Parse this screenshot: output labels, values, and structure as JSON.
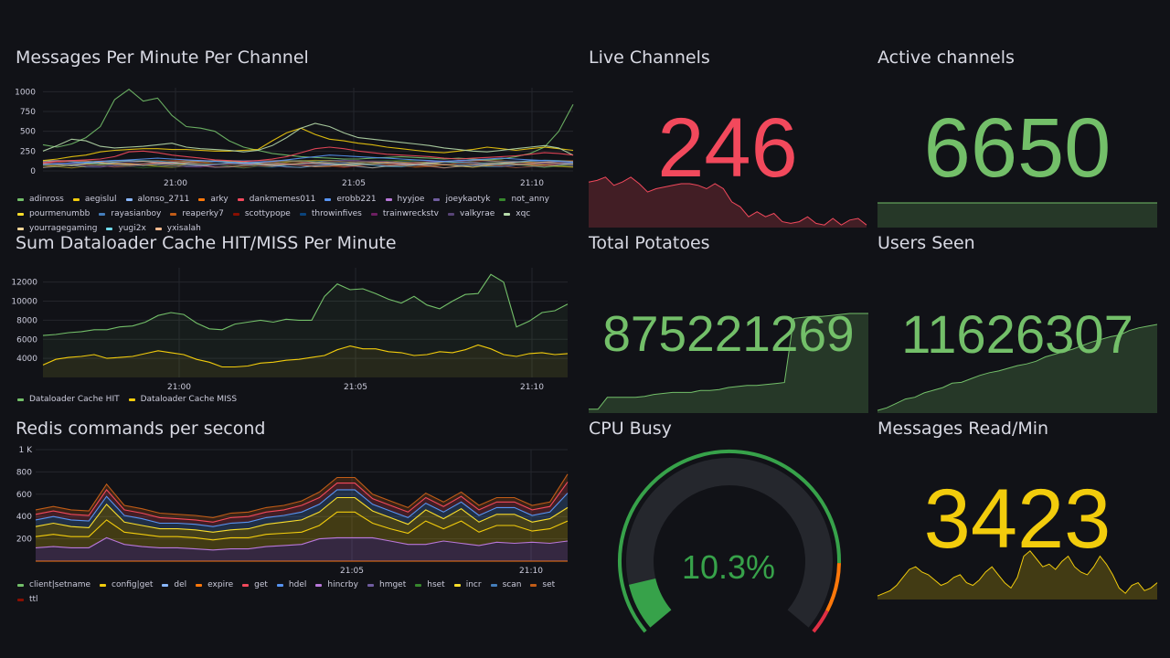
{
  "colors": {
    "red": "#f2495c",
    "green": "#73bf69",
    "yellow": "#f2cc0c",
    "background": "#111217"
  },
  "messages_panel": {
    "title": "Messages Per Minute Per Channel",
    "legend": [
      {
        "label": "adinross",
        "color": "#73bf69"
      },
      {
        "label": "aegislul",
        "color": "#f2cc0c"
      },
      {
        "label": "alonso_2711",
        "color": "#8ab8ff"
      },
      {
        "label": "arky",
        "color": "#ff780a"
      },
      {
        "label": "dankmemes011",
        "color": "#f2495c"
      },
      {
        "label": "erobb221",
        "color": "#5794f2"
      },
      {
        "label": "hyyjoe",
        "color": "#b877d9"
      },
      {
        "label": "joeykaotyk",
        "color": "#705da0"
      },
      {
        "label": "not_anny",
        "color": "#37872d"
      },
      {
        "label": "pourmenumbb",
        "color": "#fade2a"
      },
      {
        "label": "rayasianboy",
        "color": "#447ebc"
      },
      {
        "label": "reaperky7",
        "color": "#c15c17"
      },
      {
        "label": "scottypope",
        "color": "#890f02"
      },
      {
        "label": "throwinfives",
        "color": "#0a437c"
      },
      {
        "label": "trainwreckstv",
        "color": "#6d1f62"
      },
      {
        "label": "valkyrae",
        "color": "#584477"
      },
      {
        "label": "xqc",
        "color": "#b7dbab"
      },
      {
        "label": "yourragegaming",
        "color": "#f4d598"
      },
      {
        "label": "yugi2x",
        "color": "#70dbed"
      },
      {
        "label": "yxisalah",
        "color": "#f9ba8f"
      }
    ]
  },
  "cache_panel": {
    "title": "Sum Dataloader Cache HIT/MISS Per Minute",
    "legend": [
      {
        "label": "Dataloader Cache HIT",
        "color": "#73bf69"
      },
      {
        "label": "Dataloader Cache MISS",
        "color": "#f2cc0c"
      }
    ]
  },
  "redis_panel": {
    "title": "Redis commands per second",
    "legend": [
      {
        "label": "client|setname",
        "color": "#73bf69"
      },
      {
        "label": "config|get",
        "color": "#f2cc0c"
      },
      {
        "label": "del",
        "color": "#8ab8ff"
      },
      {
        "label": "expire",
        "color": "#ff780a"
      },
      {
        "label": "get",
        "color": "#f2495c"
      },
      {
        "label": "hdel",
        "color": "#5794f2"
      },
      {
        "label": "hincrby",
        "color": "#b877d9"
      },
      {
        "label": "hmget",
        "color": "#705da0"
      },
      {
        "label": "hset",
        "color": "#37872d"
      },
      {
        "label": "incr",
        "color": "#fade2a"
      },
      {
        "label": "scan",
        "color": "#447ebc"
      },
      {
        "label": "set",
        "color": "#c15c17"
      },
      {
        "label": "ttl",
        "color": "#890f02"
      }
    ]
  },
  "stats": {
    "live_channels": {
      "title": "Live Channels",
      "value": "246"
    },
    "active_channels": {
      "title": "Active channels",
      "value": "6650"
    },
    "total_potatoes": {
      "title": "Total Potatoes",
      "value": "875221269"
    },
    "users_seen": {
      "title": "Users Seen",
      "value": "11626307"
    },
    "cpu_busy": {
      "title": "CPU Busy",
      "value": "10.3%",
      "percent": 10.3
    },
    "messages_read": {
      "title": "Messages Read/Min",
      "value": "3423"
    }
  },
  "chart_data": [
    {
      "type": "line",
      "title": "Messages Per Minute Per Channel",
      "x_ticks": [
        "21:00",
        "21:05",
        "21:10"
      ],
      "y_ticks": [
        0,
        250,
        500,
        750,
        1000
      ],
      "ylim": [
        0,
        1050
      ],
      "series_hint": "20 channel series; highlighted peak series (adinross) reaches ~1030 near 20:58",
      "series": [
        {
          "name": "adinross",
          "values": [
            330,
            300,
            340,
            420,
            560,
            900,
            1030,
            880,
            920,
            700,
            560,
            540,
            500,
            380,
            300,
            260,
            220,
            200,
            180,
            170,
            160,
            150,
            150,
            160,
            170,
            180,
            170,
            160,
            150,
            160,
            150,
            140,
            150,
            180,
            220,
            300,
            500,
            840
          ]
        },
        {
          "name": "aegislul",
          "values": [
            130,
            150,
            180,
            200,
            240,
            260,
            270,
            280,
            280,
            270,
            270,
            260,
            250,
            250,
            260,
            270,
            380,
            480,
            540,
            460,
            400,
            380,
            350,
            330,
            300,
            280,
            260,
            240,
            230,
            250,
            270,
            300,
            280,
            260,
            280,
            300,
            280,
            260
          ]
        },
        {
          "name": "xqc",
          "values": [
            250,
            320,
            400,
            380,
            310,
            290,
            300,
            310,
            330,
            350,
            300,
            280,
            270,
            260,
            240,
            260,
            320,
            420,
            540,
            600,
            560,
            480,
            420,
            400,
            380,
            360,
            340,
            320,
            290,
            270,
            250,
            240,
            260,
            280,
            300,
            320,
            290,
            200
          ]
        },
        {
          "name": "dankmemes011",
          "values": [
            100,
            120,
            130,
            140,
            150,
            180,
            240,
            250,
            230,
            200,
            180,
            160,
            140,
            130,
            120,
            130,
            150,
            180,
            230,
            280,
            300,
            280,
            250,
            230,
            210,
            200,
            190,
            180,
            160,
            150,
            160,
            170,
            180,
            190,
            210,
            230,
            220,
            200
          ]
        },
        {
          "name": "erobb221",
          "values": [
            80,
            90,
            100,
            110,
            120,
            130,
            140,
            150,
            160,
            150,
            140,
            130,
            120,
            110,
            100,
            110,
            120,
            140,
            160,
            180,
            200,
            190,
            180,
            170,
            160,
            150,
            140,
            130,
            120,
            130,
            140,
            150,
            160,
            150,
            140,
            130,
            120,
            110
          ]
        }
      ]
    },
    {
      "type": "area",
      "title": "Sum Dataloader Cache HIT/MISS Per Minute",
      "x_ticks": [
        "21:00",
        "21:05",
        "21:10"
      ],
      "y_ticks": [
        4000,
        6000,
        8000,
        10000,
        12000
      ],
      "ylim": [
        2000,
        13500
      ],
      "series": [
        {
          "name": "Dataloader Cache HIT",
          "values": [
            6400,
            6500,
            6700,
            6800,
            7000,
            7000,
            7300,
            7400,
            7800,
            8500,
            8800,
            8600,
            7700,
            7100,
            7000,
            7600,
            7800,
            8000,
            7800,
            8100,
            8000,
            8000,
            10500,
            11800,
            11200,
            11300,
            10800,
            10200,
            9800,
            10500,
            9600,
            9200,
            10000,
            10700,
            10800,
            12800,
            12000,
            7300,
            7900,
            8800,
            9000,
            9700
          ]
        },
        {
          "name": "Dataloader Cache MISS",
          "values": [
            3300,
            3900,
            4100,
            4200,
            4400,
            4000,
            4100,
            4200,
            4500,
            4800,
            4600,
            4400,
            3900,
            3600,
            3100,
            3100,
            3200,
            3500,
            3600,
            3800,
            3900,
            4100,
            4300,
            4900,
            5300,
            5000,
            5000,
            4700,
            4600,
            4300,
            4400,
            4700,
            4600,
            4900,
            5400,
            5000,
            4400,
            4200,
            4500,
            4600,
            4400,
            4500
          ]
        }
      ]
    },
    {
      "type": "area",
      "title": "Redis commands per second",
      "stacked": true,
      "x_ticks": [
        "21:05",
        "21:10"
      ],
      "y_ticks": [
        "200",
        "400",
        "600",
        "800",
        "1 K"
      ],
      "ylim": [
        0,
        1000
      ],
      "series": [
        {
          "name": "hincrby",
          "values": [
            120,
            130,
            120,
            120,
            210,
            150,
            130,
            120,
            120,
            110,
            100,
            110,
            110,
            130,
            140,
            150,
            200,
            210,
            210,
            210,
            180,
            150,
            150,
            180,
            160,
            140,
            170,
            160,
            170,
            160,
            180
          ]
        },
        {
          "name": "hset",
          "values": [
            100,
            110,
            100,
            100,
            160,
            110,
            110,
            100,
            100,
            100,
            90,
            100,
            100,
            110,
            110,
            110,
            120,
            230,
            230,
            130,
            110,
            100,
            210,
            110,
            200,
            120,
            150,
            160,
            100,
            130,
            180
          ]
        },
        {
          "name": "config|get",
          "values": [
            90,
            100,
            90,
            80,
            140,
            90,
            80,
            70,
            70,
            70,
            70,
            70,
            80,
            90,
            100,
            110,
            120,
            130,
            130,
            110,
            100,
            80,
            100,
            90,
            110,
            90,
            100,
            100,
            80,
            90,
            120
          ]
        },
        {
          "name": "scan",
          "values": [
            60,
            60,
            60,
            60,
            70,
            60,
            60,
            50,
            50,
            50,
            50,
            60,
            60,
            60,
            60,
            70,
            70,
            70,
            70,
            60,
            60,
            60,
            60,
            60,
            60,
            60,
            60,
            60,
            60,
            60,
            130
          ]
        },
        {
          "name": "get",
          "values": [
            50,
            50,
            50,
            50,
            60,
            50,
            50,
            50,
            40,
            40,
            40,
            50,
            50,
            50,
            50,
            60,
            60,
            60,
            60,
            50,
            50,
            50,
            50,
            50,
            50,
            50,
            50,
            50,
            50,
            50,
            100
          ]
        },
        {
          "name": "ttl",
          "values": [
            40,
            40,
            40,
            40,
            50,
            40,
            40,
            40,
            40,
            40,
            40,
            40,
            40,
            40,
            40,
            40,
            50,
            50,
            50,
            40,
            40,
            40,
            40,
            40,
            40,
            40,
            40,
            40,
            40,
            40,
            70
          ]
        }
      ]
    },
    {
      "type": "area",
      "title": "Live Channels",
      "values": [
        270,
        280,
        300,
        250,
        270,
        300,
        260,
        210,
        230,
        240,
        250,
        260,
        260,
        250,
        230,
        260,
        230,
        150,
        120,
        60,
        90,
        60,
        80,
        30,
        20,
        30,
        60,
        20,
        10,
        50,
        10,
        40,
        50,
        10
      ]
    },
    {
      "type": "area",
      "title": "Active channels",
      "values": [
        6650,
        6650,
        6650,
        6650,
        6650,
        6650,
        6650,
        6650,
        6650,
        6650
      ]
    },
    {
      "type": "area",
      "title": "Total Potatoes",
      "values": [
        0.03,
        0.03,
        0.15,
        0.15,
        0.15,
        0.15,
        0.16,
        0.18,
        0.19,
        0.2,
        0.2,
        0.2,
        0.22,
        0.22,
        0.23,
        0.25,
        0.26,
        0.27,
        0.27,
        0.28,
        0.29,
        0.3,
        0.95,
        0.96,
        0.97,
        0.97,
        0.98,
        0.99,
        1.0,
        1.0,
        1.0
      ]
    },
    {
      "type": "area",
      "title": "Users Seen",
      "values": [
        0.02,
        0.05,
        0.1,
        0.15,
        0.17,
        0.22,
        0.25,
        0.28,
        0.33,
        0.34,
        0.38,
        0.42,
        0.45,
        0.47,
        0.5,
        0.53,
        0.55,
        0.58,
        0.63,
        0.66,
        0.69,
        0.72,
        0.76,
        0.8,
        0.83,
        0.86,
        0.88,
        0.93,
        0.96,
        0.98,
        1.0
      ]
    },
    {
      "type": "area",
      "title": "Messages Read/Min",
      "values": [
        0.05,
        0.1,
        0.15,
        0.25,
        0.4,
        0.55,
        0.6,
        0.5,
        0.45,
        0.35,
        0.25,
        0.3,
        0.4,
        0.45,
        0.3,
        0.25,
        0.35,
        0.5,
        0.6,
        0.45,
        0.3,
        0.2,
        0.4,
        0.8,
        0.9,
        0.75,
        0.6,
        0.65,
        0.55,
        0.7,
        0.8,
        0.6,
        0.5,
        0.45,
        0.6,
        0.8,
        0.65,
        0.45,
        0.2,
        0.1,
        0.25,
        0.3,
        0.15,
        0.2,
        0.3
      ]
    }
  ]
}
